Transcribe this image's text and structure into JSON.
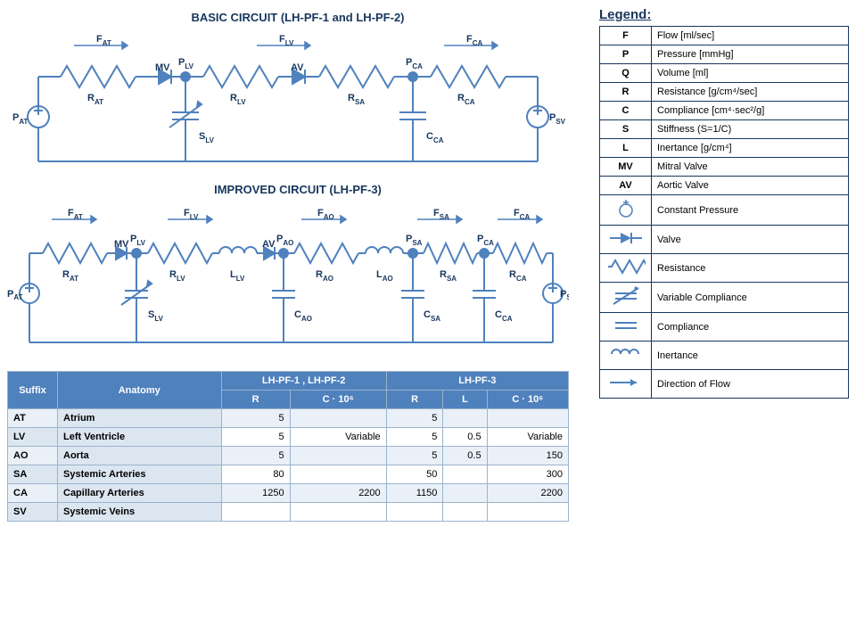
{
  "colors": {
    "wire": "#4f81bd",
    "text": "#17365d",
    "node_fill": "#4f81bd",
    "table_header_bg": "#4f81bd",
    "table_header_fg": "#ffffff",
    "table_alt_bg": "#eaf0f8",
    "table_label_bg": "#dce6f1",
    "border": "#9cb3cc"
  },
  "basic_circuit": {
    "title": "BASIC CIRCUIT (LH-PF-1 and LH-PF-2)",
    "flows": [
      "F_AT",
      "F_LV",
      "F_CA"
    ],
    "nodes_top": [
      "P_LV",
      "P_CA"
    ],
    "source_left": "P_AT",
    "source_right": "P_SV",
    "resistors": [
      "R_AT",
      "R_LV",
      "R_SA",
      "R_CA"
    ],
    "valves": [
      "MV",
      "AV"
    ],
    "var_cap": "S_LV",
    "cap": "C_CA"
  },
  "improved_circuit": {
    "title": "IMPROVED CIRCUIT (LH-PF-3)",
    "flows": [
      "F_AT",
      "F_LV",
      "F_AO",
      "F_SA",
      "F_CA"
    ],
    "nodes_top": [
      "P_LV",
      "P_AO",
      "P_SA",
      "P_CA"
    ],
    "source_left": "P_AT",
    "source_right": "P_SV",
    "resistors": [
      "R_AT",
      "R_LV",
      "R_AO",
      "R_SA",
      "R_CA"
    ],
    "inductors": [
      "L_LV",
      "L_AO"
    ],
    "valves": [
      "MV",
      "AV"
    ],
    "var_cap": "S_LV",
    "caps": [
      "C_AO",
      "C_SA",
      "C_CA"
    ]
  },
  "legend": {
    "title": "Legend:",
    "rows": [
      {
        "sym": "F",
        "text": "Flow [ml/sec]"
      },
      {
        "sym": "P",
        "text": "Pressure [mmHg]"
      },
      {
        "sym": "Q",
        "text": "Volume [ml]"
      },
      {
        "sym": "R",
        "text": "Resistance  [g/cm⁴/sec]"
      },
      {
        "sym": "C",
        "text": "Compliance [cm⁴·sec²/g]"
      },
      {
        "sym": "S",
        "text": "Stiffness (S=1/C)"
      },
      {
        "sym": "L",
        "text": "Inertance [g/cm⁴]"
      },
      {
        "sym": "MV",
        "text": "Mitral Valve"
      },
      {
        "sym": "AV",
        "text": "Aortic Valve"
      },
      {
        "sym": "constant_pressure",
        "text": "Constant Pressure"
      },
      {
        "sym": "valve",
        "text": "Valve"
      },
      {
        "sym": "resistance",
        "text": "Resistance"
      },
      {
        "sym": "variable_compliance",
        "text": "Variable Compliance"
      },
      {
        "sym": "compliance",
        "text": "Compliance"
      },
      {
        "sym": "inertance",
        "text": "Inertance"
      },
      {
        "sym": "flow_arrow",
        "text": "Direction of Flow"
      }
    ]
  },
  "param_table": {
    "suffix_head": "Suffix",
    "anatomy_head": "Anatomy",
    "group1": "LH-PF-1 ,  LH-PF-2",
    "group2": "LH-PF-3",
    "sub_R": "R",
    "sub_C": "C · 10⁶",
    "sub_L": "L",
    "rows": [
      {
        "suffix": "AT",
        "anatomy": "Atrium",
        "r1": "5",
        "c1": "",
        "r2": "5",
        "l2": "",
        "c2": ""
      },
      {
        "suffix": "LV",
        "anatomy": "Left Ventricle",
        "r1": "5",
        "c1": "Variable",
        "r2": "5",
        "l2": "0.5",
        "c2": "Variable"
      },
      {
        "suffix": "AO",
        "anatomy": "Aorta",
        "r1": "5",
        "c1": "",
        "r2": "5",
        "l2": "0.5",
        "c2": "150"
      },
      {
        "suffix": "SA",
        "anatomy": "Systemic Arteries",
        "r1": "80",
        "c1": "",
        "r2": "50",
        "l2": "",
        "c2": "300"
      },
      {
        "suffix": "CA",
        "anatomy": "Capillary Arteries",
        "r1": "1250",
        "c1": "2200",
        "r2": "1150",
        "l2": "",
        "c2": "2200"
      },
      {
        "suffix": "SV",
        "anatomy": "Systemic Veins",
        "r1": "",
        "c1": "",
        "r2": "",
        "l2": "",
        "c2": ""
      }
    ]
  }
}
